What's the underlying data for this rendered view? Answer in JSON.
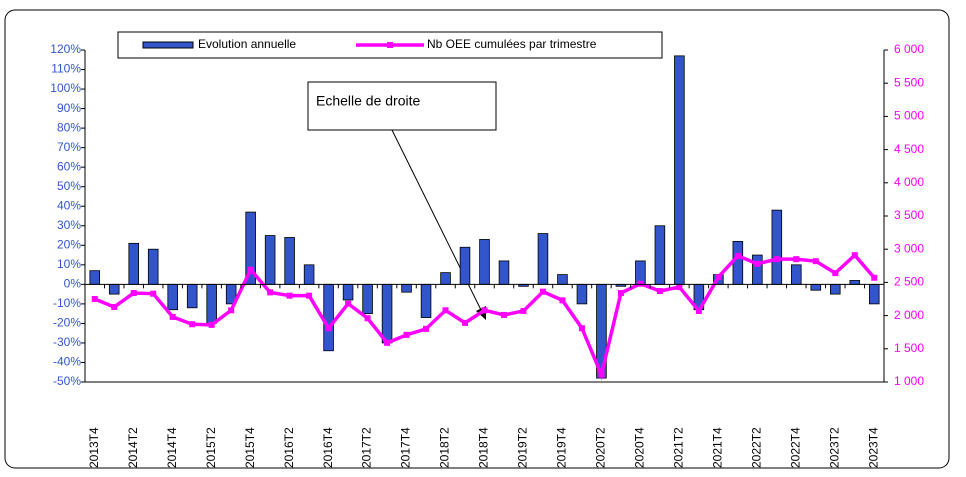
{
  "chart_data": {
    "type": "bar-line",
    "categories": [
      "2013T4",
      null,
      "2014T2",
      null,
      "2014T4",
      null,
      "2015T2",
      null,
      "2015T4",
      null,
      "2016T2",
      null,
      "2016T4",
      null,
      "2017T2",
      null,
      "2017T4",
      null,
      "2018T2",
      null,
      "2018T4",
      null,
      "2019T2",
      null,
      "2019T4",
      null,
      "2020T2",
      null,
      "2020T4",
      null,
      "2021T2",
      null,
      "2021T4",
      null,
      "2022T2",
      null,
      "2022T4",
      null,
      "2023T2",
      null,
      "2023T4"
    ],
    "series": [
      {
        "name": "Evolution annuelle",
        "type": "bar",
        "color": "#3355cc",
        "axis": "y",
        "values": [
          7,
          -5,
          21,
          18,
          -13,
          -12,
          -20,
          -10,
          37,
          25,
          24,
          10,
          -34,
          -8,
          -15,
          -30,
          -4,
          -17,
          6,
          19,
          23,
          12,
          -1,
          26,
          5,
          -10,
          -48,
          -1,
          12,
          30,
          117,
          -13,
          5,
          22,
          15,
          38,
          10,
          -3,
          -5,
          2,
          -10
        ]
      },
      {
        "name": "Nb OEE cumulées par trimestre",
        "type": "line",
        "color": "#ff00ff",
        "axis": "y2",
        "values": [
          2250,
          2130,
          2340,
          2330,
          1980,
          1870,
          1860,
          2080,
          2690,
          2350,
          2300,
          2300,
          1810,
          2180,
          1960,
          1590,
          1710,
          1800,
          2080,
          1890,
          2080,
          2010,
          2070,
          2360,
          2230,
          1810,
          1110,
          2340,
          2480,
          2370,
          2430,
          2070,
          2580,
          2900,
          2780,
          2850,
          2850,
          2820,
          2640,
          2910,
          2570
        ]
      }
    ],
    "ylim": [
      -50,
      120
    ],
    "yticks": [
      {
        "value": -50,
        "label": "-50%"
      },
      {
        "value": -40,
        "label": "-40%"
      },
      {
        "value": -30,
        "label": "-30%"
      },
      {
        "value": -20,
        "label": "-20%"
      },
      {
        "value": -10,
        "label": "-10%"
      },
      {
        "value": 0,
        "label": "0%"
      },
      {
        "value": 10,
        "label": "10%"
      },
      {
        "value": 20,
        "label": "20%"
      },
      {
        "value": 30,
        "label": "30%"
      },
      {
        "value": 40,
        "label": "40%"
      },
      {
        "value": 50,
        "label": "50%"
      },
      {
        "value": 60,
        "label": "60%"
      },
      {
        "value": 70,
        "label": "70%"
      },
      {
        "value": 80,
        "label": "80%"
      },
      {
        "value": 90,
        "label": "90%"
      },
      {
        "value": 100,
        "label": "100%"
      },
      {
        "value": 110,
        "label": "110%"
      },
      {
        "value": 120,
        "label": "120%"
      }
    ],
    "y2lim": [
      1000,
      6000
    ],
    "y2ticks": [
      {
        "value": 1000,
        "label": "1 000"
      },
      {
        "value": 1500,
        "label": "1 500"
      },
      {
        "value": 2000,
        "label": "2 000"
      },
      {
        "value": 2500,
        "label": "2 500"
      },
      {
        "value": 3000,
        "label": "3 000"
      },
      {
        "value": 3500,
        "label": "3 500"
      },
      {
        "value": 4000,
        "label": "4 000"
      },
      {
        "value": 4500,
        "label": "4 500"
      },
      {
        "value": 5000,
        "label": "5 000"
      },
      {
        "value": 5500,
        "label": "5 500"
      },
      {
        "value": 6000,
        "label": "6 000"
      }
    ],
    "annotation": "Echelle de droite",
    "y_color": "#3355cc",
    "y2_color": "#ff00ff"
  }
}
